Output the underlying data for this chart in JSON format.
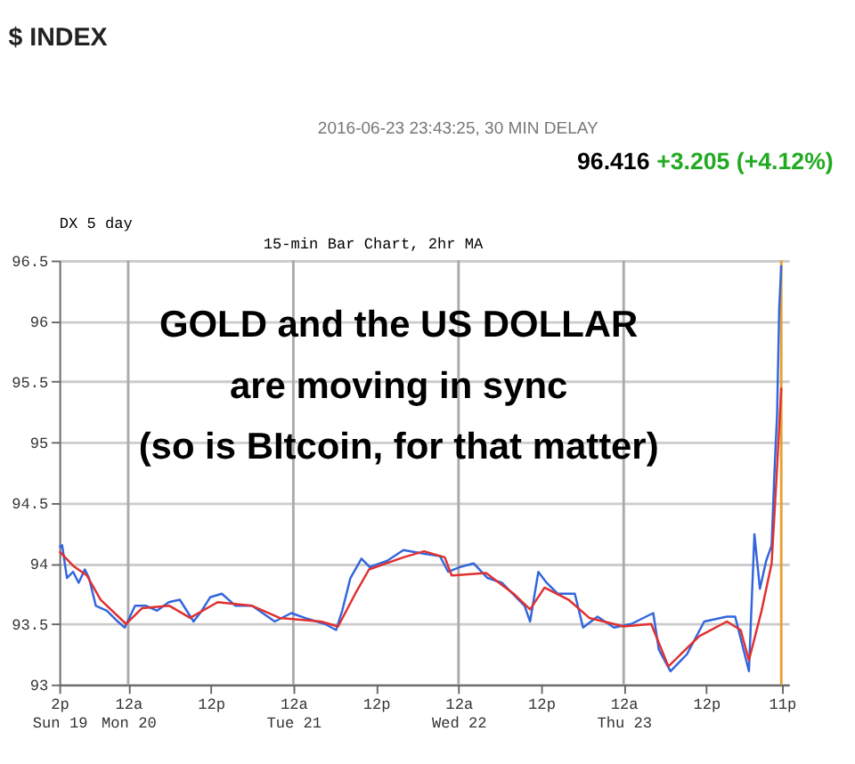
{
  "chart_data": {
    "type": "line",
    "title": "$ INDEX",
    "annotations": [
      "2016-06-23 23:43:25, 30 MIN DELAY",
      "96.416",
      "+3.205 (+4.12%)",
      "DX 5 day",
      "15-min Bar Chart, 2hr MA",
      "GOLD and the US DOLLAR",
      "are moving in sync",
      "(so is BItcoin, for that matter)"
    ],
    "xlim": [
      "2016-06-19T14:00",
      "2016-06-24T00:00"
    ],
    "ylim": [
      93,
      96.5
    ],
    "xticks": [
      {
        "value": "2016-06-19T14:00",
        "label": "2p\nSun 19"
      },
      {
        "value": "2016-06-20T00:00",
        "label": "12a\nMon 20"
      },
      {
        "value": "2016-06-20T12:00",
        "label": "12p"
      },
      {
        "value": "2016-06-21T00:00",
        "label": "12a\nTue 21"
      },
      {
        "value": "2016-06-21T12:00",
        "label": "12p"
      },
      {
        "value": "2016-06-22T00:00",
        "label": "12a\nWed 22"
      },
      {
        "value": "2016-06-22T12:00",
        "label": "12p"
      },
      {
        "value": "2016-06-23T00:00",
        "label": "12a\nThu 23"
      },
      {
        "value": "2016-06-23T12:00",
        "label": "12p"
      },
      {
        "value": "2016-06-23T23:00",
        "label": "11p"
      }
    ],
    "yticks": [
      93,
      93.5,
      94,
      94.5,
      95,
      95.5,
      96,
      96.5
    ],
    "grid": "y",
    "marker": "none",
    "line_style": "solid",
    "ref_lines": [
      {
        "axis": "x",
        "value": "2016-06-20T00:00",
        "color": "#aaaaaa"
      },
      {
        "axis": "x",
        "value": "2016-06-21T00:00",
        "color": "#aaaaaa"
      },
      {
        "axis": "x",
        "value": "2016-06-22T00:00",
        "color": "#aaaaaa"
      },
      {
        "axis": "x",
        "value": "2016-06-23T00:00",
        "color": "#aaaaaa"
      },
      {
        "axis": "x",
        "value": "2016-06-23T22:54",
        "color": "#e8a030"
      }
    ],
    "series": [
      {
        "color": "#3366dd",
        "x": [
          "2016-06-19T14:00",
          "2016-06-19T14:24",
          "2016-06-19T15:06",
          "2016-06-19T16:00",
          "2016-06-19T16:48",
          "2016-06-19T17:42",
          "2016-06-19T18:18",
          "2016-06-19T19:18",
          "2016-06-19T20:54",
          "2016-06-19T22:30",
          "2016-06-19T23:30",
          "2016-06-20T01:00",
          "2016-06-20T02:36",
          "2016-06-20T04:12",
          "2016-06-20T05:54",
          "2016-06-20T07:30",
          "2016-06-20T09:30",
          "2016-06-20T10:42",
          "2016-06-20T11:54",
          "2016-06-20T13:36",
          "2016-06-20T15:36",
          "2016-06-20T18:00",
          "2016-06-20T21:18",
          "2016-06-20T23:42",
          "2016-06-21T02:12",
          "2016-06-21T04:36",
          "2016-06-21T06:12",
          "2016-06-21T07:06",
          "2016-06-21T08:18",
          "2016-06-21T09:54",
          "2016-06-21T11:06",
          "2016-06-21T13:36",
          "2016-06-21T16:00",
          "2016-06-21T18:54",
          "2016-06-21T21:18",
          "2016-06-21T22:30",
          "2016-06-22T00:12",
          "2016-06-22T02:12",
          "2016-06-22T04:12",
          "2016-06-22T06:18",
          "2016-06-22T09:36",
          "2016-06-22T10:24",
          "2016-06-22T11:36",
          "2016-06-22T12:48",
          "2016-06-22T14:24",
          "2016-06-22T16:54",
          "2016-06-22T18:06",
          "2016-06-22T20:12",
          "2016-06-22T22:36",
          "2016-06-23T01:06",
          "2016-06-23T04:18",
          "2016-06-23T05:06",
          "2016-06-23T06:48",
          "2016-06-23T09:12",
          "2016-06-23T11:42",
          "2016-06-23T15:00",
          "2016-06-23T16:12",
          "2016-06-23T17:00",
          "2016-06-23T18:12",
          "2016-06-23T19:00",
          "2016-06-23T19:48",
          "2016-06-23T20:42",
          "2016-06-23T21:30",
          "2016-06-23T21:54",
          "2016-06-23T22:18",
          "2016-06-23T22:36",
          "2016-06-23T22:54"
        ],
        "values": [
          94.13,
          94.15,
          93.88,
          93.93,
          93.84,
          93.95,
          93.88,
          93.65,
          93.61,
          93.52,
          93.47,
          93.65,
          93.65,
          93.61,
          93.68,
          93.7,
          93.52,
          93.61,
          93.72,
          93.75,
          93.65,
          93.65,
          93.52,
          93.59,
          93.54,
          93.5,
          93.45,
          93.61,
          93.88,
          94.04,
          93.97,
          94.02,
          94.11,
          94.08,
          94.06,
          93.93,
          93.97,
          94.0,
          93.88,
          93.84,
          93.65,
          93.52,
          93.93,
          93.84,
          93.75,
          93.75,
          93.47,
          93.56,
          93.47,
          93.5,
          93.59,
          93.29,
          93.11,
          93.25,
          93.52,
          93.56,
          93.56,
          93.38,
          93.11,
          94.24,
          93.79,
          94.02,
          94.15,
          94.74,
          95.24,
          96.1,
          96.46
        ]
      },
      {
        "color": "#e03030",
        "x": [
          "2016-06-19T14:00",
          "2016-06-19T16:00",
          "2016-06-19T18:00",
          "2016-06-19T20:00",
          "2016-06-19T23:42",
          "2016-06-20T02:00",
          "2016-06-20T06:00",
          "2016-06-20T09:00",
          "2016-06-20T13:00",
          "2016-06-20T18:00",
          "2016-06-20T22:00",
          "2016-06-21T04:00",
          "2016-06-21T06:30",
          "2016-06-21T09:00",
          "2016-06-21T11:00",
          "2016-06-21T16:00",
          "2016-06-21T19:00",
          "2016-06-21T22:00",
          "2016-06-21T23:00",
          "2016-06-22T04:00",
          "2016-06-22T08:00",
          "2016-06-22T10:24",
          "2016-06-22T12:30",
          "2016-06-22T16:00",
          "2016-06-22T19:00",
          "2016-06-23T00:00",
          "2016-06-23T04:00",
          "2016-06-23T06:30",
          "2016-06-23T11:00",
          "2016-06-23T15:00",
          "2016-06-23T17:00",
          "2016-06-23T18:12",
          "2016-06-23T20:00",
          "2016-06-23T21:30",
          "2016-06-23T22:18",
          "2016-06-23T22:54"
        ],
        "values": [
          94.1,
          93.98,
          93.9,
          93.7,
          93.5,
          93.63,
          93.65,
          93.55,
          93.68,
          93.65,
          93.55,
          93.52,
          93.48,
          93.75,
          93.95,
          94.05,
          94.1,
          94.05,
          93.9,
          93.92,
          93.75,
          93.62,
          93.8,
          93.7,
          93.55,
          93.48,
          93.5,
          93.15,
          93.4,
          93.52,
          93.45,
          93.2,
          93.6,
          94.0,
          94.8,
          95.45
        ]
      }
    ]
  }
}
